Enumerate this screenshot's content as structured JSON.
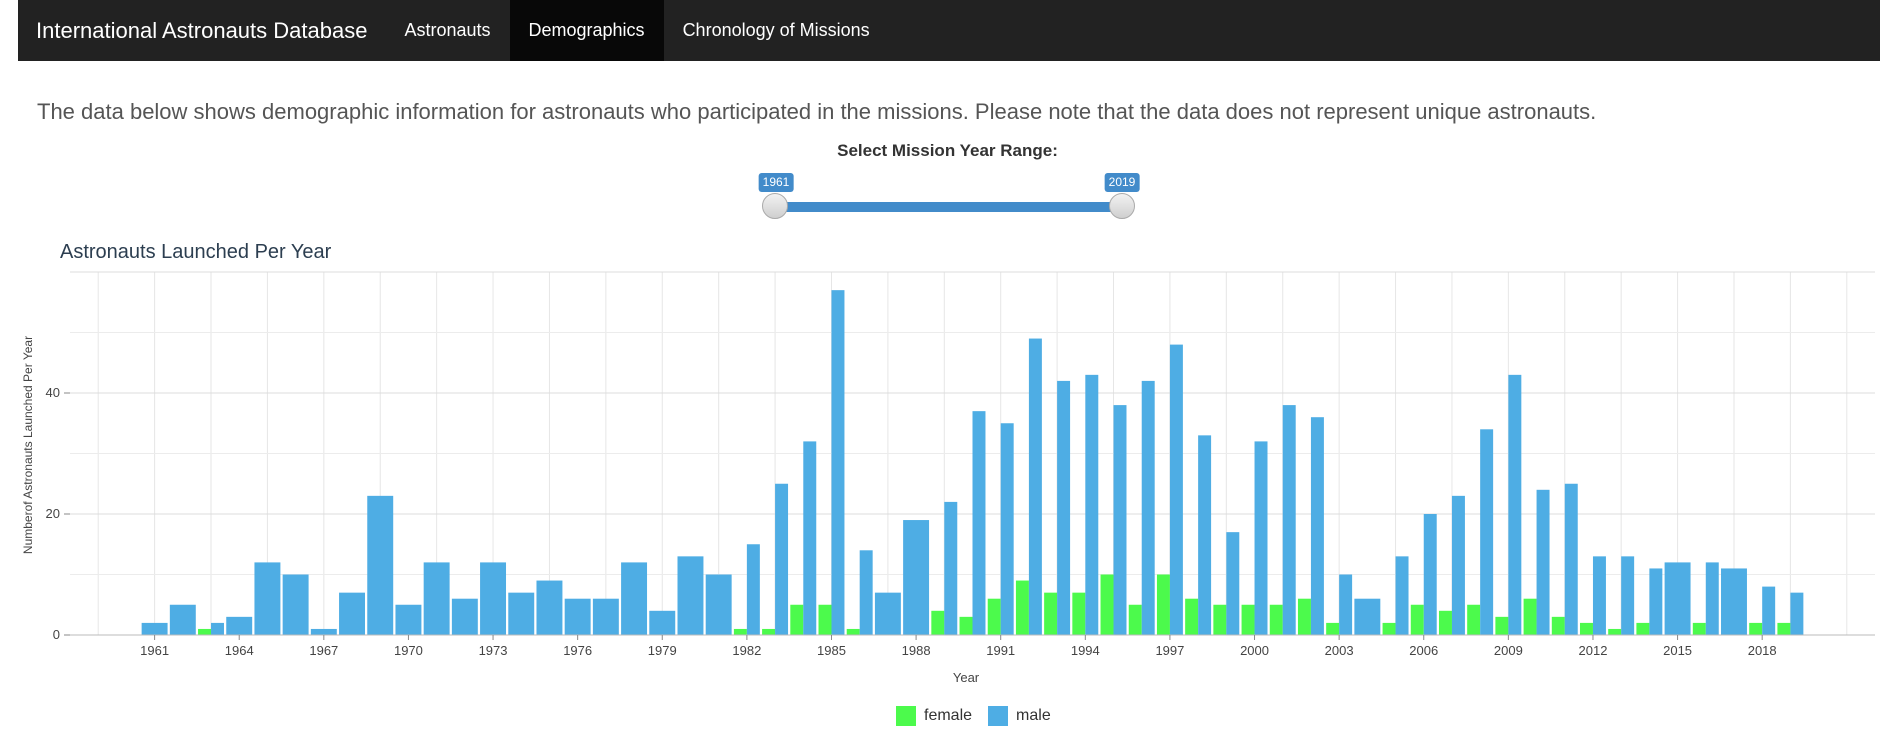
{
  "navbar": {
    "brand": "International Astronauts Database",
    "tabs": [
      {
        "label": "Astronauts"
      },
      {
        "label": "Demographics"
      },
      {
        "label": "Chronology of Missions"
      }
    ]
  },
  "intro_text": "The data below shows demographic information for astronauts who participated in the missions. Please note that the data does not represent unique astronauts.",
  "slider": {
    "label": "Select Mission Year Range:",
    "min_label": "1961",
    "max_label": "2019"
  },
  "colors": {
    "female": "#4cfa4c",
    "male": "#4eade4",
    "accent": "#428bca"
  },
  "chart_data": {
    "type": "bar",
    "title": "Astronauts Launched Per Year",
    "xlabel": "Year",
    "ylabel": "Numberof Astronauts Launched Per Year",
    "xlim": [
      1958,
      2022
    ],
    "ylim": [
      0,
      60
    ],
    "x_ticks": [
      1961,
      1964,
      1967,
      1970,
      1973,
      1976,
      1979,
      1982,
      1985,
      1988,
      1991,
      1994,
      1997,
      2000,
      2003,
      2006,
      2009,
      2012,
      2015,
      2018
    ],
    "y_ticks": [
      0,
      20,
      40
    ],
    "grid": true,
    "legend_position": "bottom",
    "years": [
      1961,
      1962,
      1963,
      1964,
      1965,
      1966,
      1967,
      1968,
      1969,
      1970,
      1971,
      1972,
      1973,
      1974,
      1975,
      1976,
      1977,
      1978,
      1979,
      1980,
      1981,
      1982,
      1983,
      1984,
      1985,
      1986,
      1987,
      1988,
      1989,
      1990,
      1991,
      1992,
      1993,
      1994,
      1995,
      1996,
      1997,
      1998,
      1999,
      2000,
      2001,
      2002,
      2003,
      2004,
      2005,
      2006,
      2007,
      2008,
      2009,
      2010,
      2011,
      2012,
      2013,
      2014,
      2015,
      2016,
      2017,
      2018,
      2019
    ],
    "series": [
      {
        "name": "female",
        "values": [
          0,
          0,
          1,
          0,
          0,
          0,
          0,
          0,
          0,
          0,
          0,
          0,
          0,
          0,
          0,
          0,
          0,
          0,
          0,
          0,
          0,
          1,
          1,
          5,
          5,
          1,
          0,
          0,
          4,
          3,
          6,
          9,
          7,
          7,
          10,
          5,
          10,
          6,
          5,
          5,
          5,
          6,
          2,
          0,
          2,
          5,
          4,
          5,
          3,
          6,
          3,
          2,
          1,
          2,
          0,
          2,
          0,
          2,
          2
        ]
      },
      {
        "name": "male",
        "values": [
          2,
          5,
          2,
          3,
          12,
          10,
          1,
          7,
          23,
          5,
          12,
          6,
          12,
          7,
          9,
          6,
          6,
          12,
          4,
          13,
          10,
          15,
          25,
          32,
          57,
          14,
          7,
          19,
          22,
          37,
          35,
          49,
          42,
          43,
          38,
          42,
          48,
          33,
          17,
          32,
          38,
          36,
          10,
          6,
          13,
          20,
          23,
          34,
          43,
          24,
          25,
          13,
          13,
          11,
          12,
          12,
          11,
          8,
          7
        ]
      }
    ]
  }
}
